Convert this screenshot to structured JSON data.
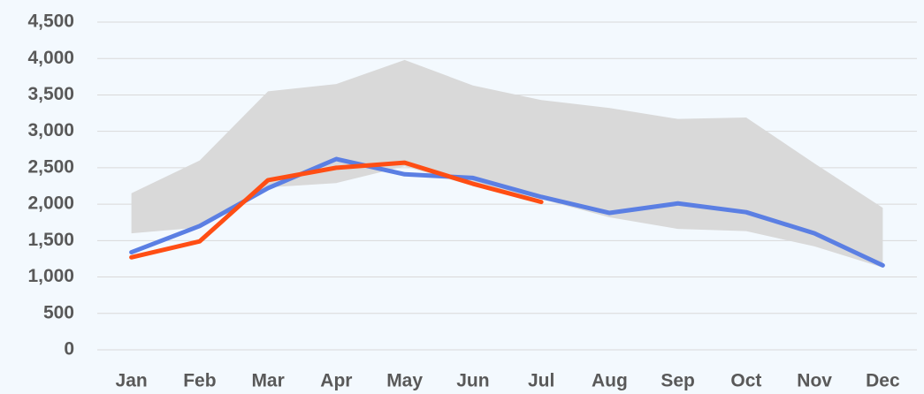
{
  "chart_data": {
    "type": "line",
    "categories": [
      "Jan",
      "Feb",
      "Mar",
      "Apr",
      "May",
      "Jun",
      "Jul",
      "Aug",
      "Sep",
      "Oct",
      "Nov",
      "Dec"
    ],
    "band": {
      "color": "#d9d9d9",
      "upper": [
        2150,
        2600,
        3550,
        3650,
        3980,
        3630,
        3430,
        3320,
        3170,
        3190,
        2560,
        1950
      ],
      "lower": [
        1600,
        1680,
        2230,
        2290,
        2520,
        2250,
        2070,
        1820,
        1660,
        1630,
        1420,
        1130
      ]
    },
    "series": [
      {
        "color": "#5b7fe3",
        "values": [
          1340,
          1700,
          2220,
          2620,
          2410,
          2360,
          2100,
          1880,
          2010,
          1890,
          1600,
          1160
        ]
      },
      {
        "color": "#ff4e14",
        "values": [
          1270,
          1490,
          2330,
          2500,
          2570,
          2280,
          2030,
          null,
          null,
          null,
          null,
          null
        ]
      }
    ],
    "ylim": [
      0,
      4500
    ],
    "yticks": [
      0,
      500,
      {
        "value": 1000,
        "label": "1,000"
      },
      {
        "value": 1500,
        "label": "1,500"
      },
      {
        "value": 2000,
        "label": "2,000"
      },
      {
        "value": 2500,
        "label": "2,500"
      },
      {
        "value": 3000,
        "label": "3,000"
      },
      {
        "value": 3500,
        "label": "3,500"
      },
      {
        "value": 4000,
        "label": "4,000"
      },
      {
        "value": 4500,
        "label": "4,500"
      }
    ],
    "grid": true
  }
}
